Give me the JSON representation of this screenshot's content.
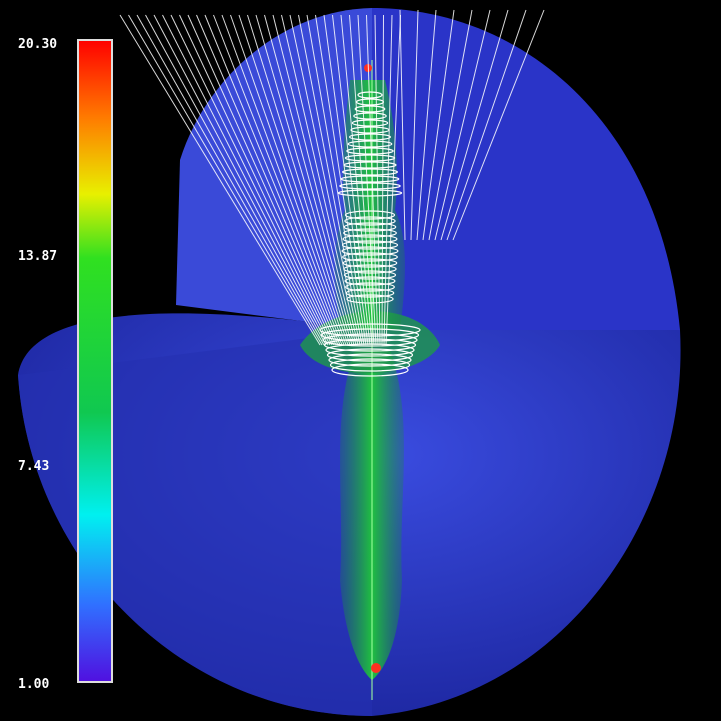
{
  "colorbar": {
    "labels": [
      "20.30",
      "13.87",
      "7.43",
      "1.00"
    ]
  }
}
